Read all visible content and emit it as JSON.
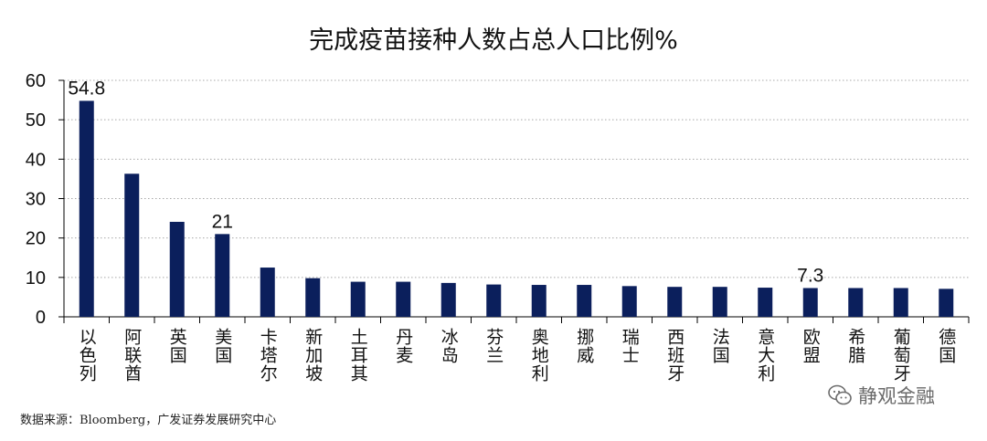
{
  "chart_data": {
    "type": "bar",
    "title": "完成疫苗接种人数占总人口比例%",
    "categories": [
      "以色列",
      "阿联酋",
      "英国",
      "美国",
      "卡塔尔",
      "新加坡",
      "土耳其",
      "丹麦",
      "冰岛",
      "芬兰",
      "奥地利",
      "挪威",
      "瑞士",
      "西班牙",
      "法国",
      "意大利",
      "欧盟",
      "希腊",
      "葡萄牙",
      "德国"
    ],
    "values": [
      54.8,
      36.3,
      24.1,
      21,
      12.5,
      9.8,
      8.9,
      8.9,
      8.6,
      8.2,
      8.1,
      8.1,
      7.8,
      7.6,
      7.6,
      7.4,
      7.3,
      7.3,
      7.3,
      7.1
    ],
    "data_labels": {
      "以色列": "54.8",
      "美国": "21",
      "欧盟": "7.3"
    },
    "ylim": [
      0,
      60
    ],
    "yticks": [
      0,
      10,
      20,
      30,
      40,
      50,
      60
    ],
    "grid": true,
    "bar_color": "#0b1f5c",
    "grid_color": "#a8a8a8"
  },
  "source": "数据来源：Bloomberg，广发证券发展研究中心",
  "watermark": {
    "text": "静观金融",
    "icon": "wechat-icon"
  }
}
